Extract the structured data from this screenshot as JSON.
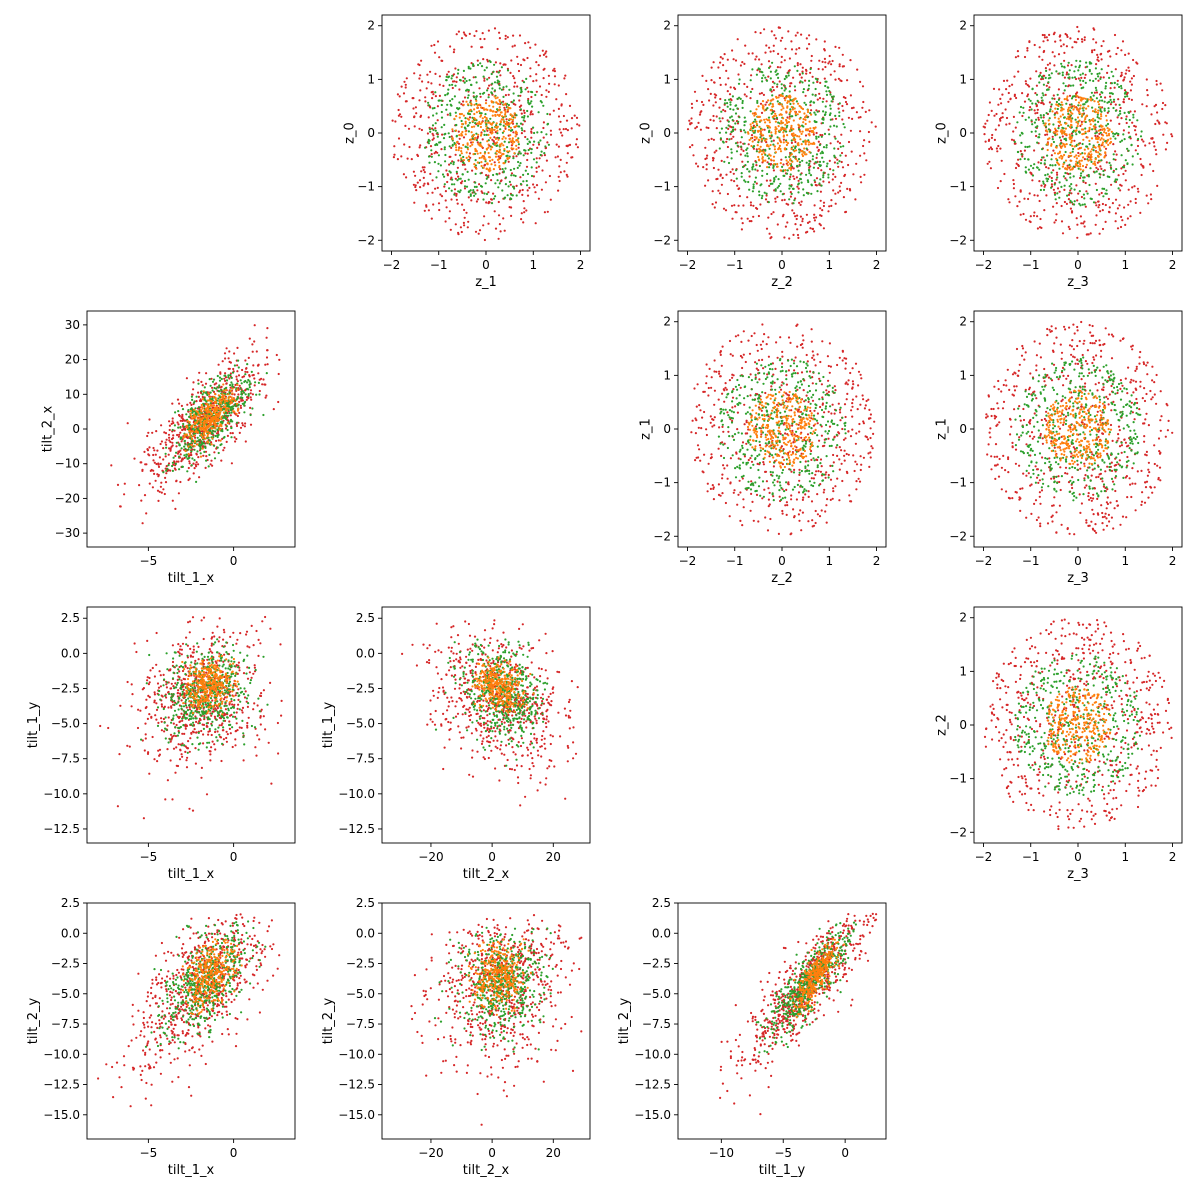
{
  "colors": {
    "outer": "#d62728",
    "middle": "#2ca02c",
    "inner": "#ff7f0e"
  },
  "chart_data": [
    {
      "type": "scatter",
      "panel": "z_1-vs-z_0",
      "row": 0,
      "col": 1,
      "xlabel": "z_1",
      "ylabel": "z_0",
      "xlim": [
        -2.2,
        2.2
      ],
      "ylim": [
        -2.2,
        2.2
      ],
      "xticks": [
        -2,
        -1,
        0,
        1,
        2
      ],
      "yticks": [
        -2,
        -1,
        0,
        1,
        2
      ],
      "series": [
        {
          "color": "#d62728",
          "shape": "ring",
          "count": 600,
          "r": [
            0.0,
            2.0
          ],
          "seed": 11
        },
        {
          "color": "#2ca02c",
          "shape": "ring",
          "count": 450,
          "r": [
            0.0,
            1.35
          ],
          "seed": 12
        },
        {
          "color": "#ff7f0e",
          "shape": "ring",
          "count": 300,
          "r": [
            0.0,
            0.72
          ],
          "seed": 13
        }
      ]
    },
    {
      "type": "scatter",
      "panel": "z_2-vs-z_0",
      "row": 0,
      "col": 2,
      "xlabel": "z_2",
      "ylabel": "z_0",
      "xlim": [
        -2.2,
        2.2
      ],
      "ylim": [
        -2.2,
        2.2
      ],
      "xticks": [
        -2,
        -1,
        0,
        1,
        2
      ],
      "yticks": [
        -2,
        -1,
        0,
        1,
        2
      ],
      "series": [
        {
          "color": "#d62728",
          "shape": "ring",
          "count": 600,
          "r": [
            0.0,
            2.0
          ],
          "seed": 21
        },
        {
          "color": "#2ca02c",
          "shape": "ring",
          "count": 450,
          "r": [
            0.0,
            1.35
          ],
          "seed": 22
        },
        {
          "color": "#ff7f0e",
          "shape": "ring",
          "count": 300,
          "r": [
            0.0,
            0.72
          ],
          "seed": 23
        }
      ]
    },
    {
      "type": "scatter",
      "panel": "z_3-vs-z_0",
      "row": 0,
      "col": 3,
      "xlabel": "z_3",
      "ylabel": "z_0",
      "xlim": [
        -2.2,
        2.2
      ],
      "ylim": [
        -2.2,
        2.2
      ],
      "xticks": [
        -2,
        -1,
        0,
        1,
        2
      ],
      "yticks": [
        -2,
        -1,
        0,
        1,
        2
      ],
      "series": [
        {
          "color": "#d62728",
          "shape": "ring",
          "count": 600,
          "r": [
            0.0,
            2.0
          ],
          "seed": 31
        },
        {
          "color": "#2ca02c",
          "shape": "ring",
          "count": 450,
          "r": [
            0.0,
            1.35
          ],
          "seed": 32
        },
        {
          "color": "#ff7f0e",
          "shape": "ring",
          "count": 300,
          "r": [
            0.0,
            0.72
          ],
          "seed": 33
        }
      ]
    },
    {
      "type": "scatter",
      "panel": "tilt_1_x-vs-tilt_2_x",
      "row": 1,
      "col": 0,
      "xlabel": "tilt_1_x",
      "ylabel": "tilt_2_x",
      "xlim": [
        -8.6,
        3.6
      ],
      "ylim": [
        -34,
        34
      ],
      "xticks": [
        -5,
        0
      ],
      "yticks": [
        -30,
        -20,
        -10,
        0,
        10,
        20,
        30
      ],
      "series": [
        {
          "color": "#d62728",
          "shape": "gauss",
          "count": 650,
          "mean": [
            -1.6,
            2.5
          ],
          "sd": [
            1.8,
            10.0
          ],
          "corr": 0.75,
          "clip": [
            [
              -8,
              3
            ],
            [
              -33,
              30
            ]
          ],
          "seed": 41
        },
        {
          "color": "#2ca02c",
          "shape": "gauss",
          "count": 500,
          "mean": [
            -1.4,
            3.0
          ],
          "sd": [
            1.2,
            6.5
          ],
          "corr": 0.7,
          "clip": [
            [
              -5,
              2
            ],
            [
              -22,
              20
            ]
          ],
          "seed": 42
        },
        {
          "color": "#ff7f0e",
          "shape": "gauss",
          "count": 320,
          "mean": [
            -1.4,
            3.0
          ],
          "sd": [
            0.7,
            4.0
          ],
          "corr": 0.6,
          "clip": [
            [
              -3,
              0.5
            ],
            [
              -8,
              14
            ]
          ],
          "seed": 43
        }
      ]
    },
    {
      "type": "scatter",
      "panel": "z_2-vs-z_1",
      "row": 1,
      "col": 2,
      "xlabel": "z_2",
      "ylabel": "z_1",
      "xlim": [
        -2.2,
        2.2
      ],
      "ylim": [
        -2.2,
        2.2
      ],
      "xticks": [
        -2,
        -1,
        0,
        1,
        2
      ],
      "yticks": [
        -2,
        -1,
        0,
        1,
        2
      ],
      "series": [
        {
          "color": "#d62728",
          "shape": "ring",
          "count": 600,
          "r": [
            0.0,
            2.0
          ],
          "seed": 51
        },
        {
          "color": "#2ca02c",
          "shape": "ring",
          "count": 450,
          "r": [
            0.0,
            1.35
          ],
          "seed": 52
        },
        {
          "color": "#ff7f0e",
          "shape": "ring",
          "count": 300,
          "r": [
            0.0,
            0.72
          ],
          "seed": 53
        }
      ]
    },
    {
      "type": "scatter",
      "panel": "z_3-vs-z_1",
      "row": 1,
      "col": 3,
      "xlabel": "z_3",
      "ylabel": "z_1",
      "xlim": [
        -2.2,
        2.2
      ],
      "ylim": [
        -2.2,
        2.2
      ],
      "xticks": [
        -2,
        -1,
        0,
        1,
        2
      ],
      "yticks": [
        -2,
        -1,
        0,
        1,
        2
      ],
      "series": [
        {
          "color": "#d62728",
          "shape": "ring",
          "count": 600,
          "r": [
            0.0,
            2.0
          ],
          "seed": 61
        },
        {
          "color": "#2ca02c",
          "shape": "ring",
          "count": 450,
          "r": [
            0.0,
            1.35
          ],
          "seed": 62
        },
        {
          "color": "#ff7f0e",
          "shape": "ring",
          "count": 300,
          "r": [
            0.0,
            0.72
          ],
          "seed": 63
        }
      ]
    },
    {
      "type": "scatter",
      "panel": "tilt_1_x-vs-tilt_1_y",
      "row": 2,
      "col": 0,
      "xlabel": "tilt_1_x",
      "ylabel": "tilt_1_y",
      "xlim": [
        -8.6,
        3.6
      ],
      "ylim": [
        -13.5,
        3.3
      ],
      "xticks": [
        -5,
        0
      ],
      "yticks": [
        -12.5,
        -10.0,
        -7.5,
        -5.0,
        -2.5,
        0.0,
        2.5
      ],
      "series": [
        {
          "color": "#d62728",
          "shape": "gauss",
          "count": 650,
          "mean": [
            -1.8,
            -3.2
          ],
          "sd": [
            2.0,
            2.6
          ],
          "corr": 0.25,
          "clip": [
            [
              -8,
              3
            ],
            [
              -12.8,
              2.6
            ]
          ],
          "seed": 71
        },
        {
          "color": "#2ca02c",
          "shape": "gauss",
          "count": 500,
          "mean": [
            -1.6,
            -2.8
          ],
          "sd": [
            1.3,
            1.7
          ],
          "corr": 0.2,
          "clip": [
            [
              -5.5,
              2
            ],
            [
              -8,
              1
            ]
          ],
          "seed": 72
        },
        {
          "color": "#ff7f0e",
          "shape": "gauss",
          "count": 320,
          "mean": [
            -1.4,
            -2.3
          ],
          "sd": [
            0.7,
            0.9
          ],
          "corr": 0.1,
          "clip": [
            [
              -3.2,
              0.5
            ],
            [
              -4.5,
              0
            ]
          ],
          "seed": 73
        }
      ]
    },
    {
      "type": "scatter",
      "panel": "tilt_2_x-vs-tilt_1_y",
      "row": 2,
      "col": 1,
      "xlabel": "tilt_2_x",
      "ylabel": "tilt_1_y",
      "xlim": [
        -36,
        32
      ],
      "ylim": [
        -13.5,
        3.3
      ],
      "xticks": [
        -20,
        0,
        20
      ],
      "yticks": [
        -12.5,
        -10.0,
        -7.5,
        -5.0,
        -2.5,
        0.0,
        2.5
      ],
      "series": [
        {
          "color": "#d62728",
          "shape": "gauss",
          "count": 650,
          "mean": [
            3.0,
            -3.2
          ],
          "sd": [
            11.0,
            2.6
          ],
          "corr": -0.35,
          "clip": [
            [
              -33,
              30
            ],
            [
              -12.8,
              2.6
            ]
          ],
          "seed": 81
        },
        {
          "color": "#2ca02c",
          "shape": "gauss",
          "count": 500,
          "mean": [
            3.0,
            -2.8
          ],
          "sd": [
            7.0,
            1.7
          ],
          "corr": -0.3,
          "clip": [
            [
              -20,
              20
            ],
            [
              -8,
              1
            ]
          ],
          "seed": 82
        },
        {
          "color": "#ff7f0e",
          "shape": "gauss",
          "count": 320,
          "mean": [
            2.0,
            -2.3
          ],
          "sd": [
            4.0,
            0.9
          ],
          "corr": -0.2,
          "clip": [
            [
              -8,
              14
            ],
            [
              -4.5,
              0
            ]
          ],
          "seed": 83
        }
      ]
    },
    {
      "type": "scatter",
      "panel": "z_3-vs-z_2",
      "row": 2,
      "col": 3,
      "xlabel": "z_3",
      "ylabel": "z_2",
      "xlim": [
        -2.2,
        2.2
      ],
      "ylim": [
        -2.2,
        2.2
      ],
      "xticks": [
        -2,
        -1,
        0,
        1,
        2
      ],
      "yticks": [
        -2,
        -1,
        0,
        1,
        2
      ],
      "series": [
        {
          "color": "#d62728",
          "shape": "ring",
          "count": 600,
          "r": [
            0.0,
            2.0
          ],
          "seed": 91
        },
        {
          "color": "#2ca02c",
          "shape": "ring",
          "count": 450,
          "r": [
            0.0,
            1.35
          ],
          "seed": 92
        },
        {
          "color": "#ff7f0e",
          "shape": "ring",
          "count": 300,
          "r": [
            0.0,
            0.72
          ],
          "seed": 93
        }
      ]
    },
    {
      "type": "scatter",
      "panel": "tilt_1_x-vs-tilt_2_y",
      "row": 3,
      "col": 0,
      "xlabel": "tilt_1_x",
      "ylabel": "tilt_2_y",
      "xlim": [
        -8.6,
        3.6
      ],
      "ylim": [
        -17,
        2.5
      ],
      "xticks": [
        -5,
        0
      ],
      "yticks": [
        -15.0,
        -12.5,
        -10.0,
        -7.5,
        -5.0,
        -2.5,
        0.0,
        2.5
      ],
      "series": [
        {
          "color": "#d62728",
          "shape": "gauss",
          "count": 650,
          "mean": [
            -1.8,
            -4.2
          ],
          "sd": [
            2.0,
            3.3
          ],
          "corr": 0.6,
          "clip": [
            [
              -8,
              3
            ],
            [
              -16,
              1.6
            ]
          ],
          "seed": 101
        },
        {
          "color": "#2ca02c",
          "shape": "gauss",
          "count": 500,
          "mean": [
            -1.6,
            -4.0
          ],
          "sd": [
            1.3,
            2.3
          ],
          "corr": 0.55,
          "clip": [
            [
              -5.5,
              2
            ],
            [
              -10,
              1
            ]
          ],
          "seed": 102
        },
        {
          "color": "#ff7f0e",
          "shape": "gauss",
          "count": 320,
          "mean": [
            -1.4,
            -3.5
          ],
          "sd": [
            0.7,
            1.4
          ],
          "corr": 0.4,
          "clip": [
            [
              -3.2,
              0.5
            ],
            [
              -7,
              -0.5
            ]
          ],
          "seed": 103
        }
      ]
    },
    {
      "type": "scatter",
      "panel": "tilt_2_x-vs-tilt_2_y",
      "row": 3,
      "col": 1,
      "xlabel": "tilt_2_x",
      "ylabel": "tilt_2_y",
      "xlim": [
        -36,
        32
      ],
      "ylim": [
        -17,
        2.5
      ],
      "xticks": [
        -20,
        0,
        20
      ],
      "yticks": [
        -15.0,
        -12.5,
        -10.0,
        -7.5,
        -5.0,
        -2.5,
        0.0,
        2.5
      ],
      "series": [
        {
          "color": "#d62728",
          "shape": "gauss",
          "count": 650,
          "mean": [
            3.0,
            -4.2
          ],
          "sd": [
            11.0,
            3.3
          ],
          "corr": 0.15,
          "clip": [
            [
              -33,
              30
            ],
            [
              -16,
              1.6
            ]
          ],
          "seed": 111
        },
        {
          "color": "#2ca02c",
          "shape": "gauss",
          "count": 500,
          "mean": [
            3.0,
            -4.0
          ],
          "sd": [
            7.0,
            2.3
          ],
          "corr": 0.1,
          "clip": [
            [
              -20,
              20
            ],
            [
              -10,
              1
            ]
          ],
          "seed": 112
        },
        {
          "color": "#ff7f0e",
          "shape": "gauss",
          "count": 320,
          "mean": [
            2.0,
            -3.5
          ],
          "sd": [
            4.0,
            1.4
          ],
          "corr": 0.05,
          "clip": [
            [
              -8,
              14
            ],
            [
              -7,
              -0.5
            ]
          ],
          "seed": 113
        }
      ]
    },
    {
      "type": "scatter",
      "panel": "tilt_1_y-vs-tilt_2_y",
      "row": 3,
      "col": 2,
      "xlabel": "tilt_1_y",
      "ylabel": "tilt_2_y",
      "xlim": [
        -13.5,
        3.3
      ],
      "ylim": [
        -17,
        2.5
      ],
      "xticks": [
        -10,
        -5,
        0
      ],
      "yticks": [
        -15.0,
        -12.5,
        -10.0,
        -7.5,
        -5.0,
        -2.5,
        0.0,
        2.5
      ],
      "series": [
        {
          "color": "#d62728",
          "shape": "gauss",
          "count": 650,
          "mean": [
            -3.0,
            -4.2
          ],
          "sd": [
            2.6,
            3.3
          ],
          "corr": 0.85,
          "clip": [
            [
              -12.8,
              2.6
            ],
            [
              -16,
              1.6
            ]
          ],
          "seed": 121
        },
        {
          "color": "#2ca02c",
          "shape": "gauss",
          "count": 500,
          "mean": [
            -2.8,
            -4.0
          ],
          "sd": [
            1.7,
            2.3
          ],
          "corr": 0.85,
          "clip": [
            [
              -8,
              1
            ],
            [
              -10,
              1
            ]
          ],
          "seed": 122
        },
        {
          "color": "#ff7f0e",
          "shape": "gauss",
          "count": 320,
          "mean": [
            -2.3,
            -3.5
          ],
          "sd": [
            0.9,
            1.4
          ],
          "corr": 0.8,
          "clip": [
            [
              -4.5,
              0
            ],
            [
              -7,
              -0.5
            ]
          ],
          "seed": 123
        }
      ]
    }
  ]
}
